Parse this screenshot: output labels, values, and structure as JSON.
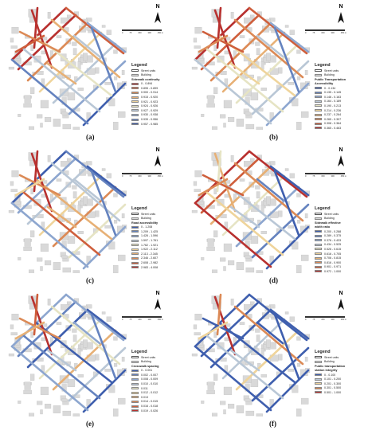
{
  "legend_common": {
    "title": "Legend",
    "street_units": "Street units",
    "building": "Building"
  },
  "north_label": "N",
  "scale_ticks": [
    "0",
    "75",
    "150",
    "300",
    "450"
  ],
  "scale_unit": "m",
  "panels": [
    {
      "id": "a",
      "caption": "(a)",
      "indicator": [
        "Sidewalk continuity"
      ],
      "classes": [
        {
          "label": "0 - 0.894",
          "color": "#b8312f"
        },
        {
          "label": "0.895 - 0.899",
          "color": "#cf5f3c"
        },
        {
          "label": "0.900 - 0.914",
          "color": "#dc8a56"
        },
        {
          "label": "0.915 - 0.920",
          "color": "#e7b075"
        },
        {
          "label": "0.921 - 0.923",
          "color": "#efd49b"
        },
        {
          "label": "0.924 - 0.926",
          "color": "#e6e4c4"
        },
        {
          "label": "0.927 - 0.929",
          "color": "#b9c7d6"
        },
        {
          "label": "0.930 - 0.938",
          "color": "#8da6cf"
        },
        {
          "label": "0.939 - 0.956",
          "color": "#6583bf"
        },
        {
          "label": "0.957 - 0.985",
          "color": "#3f5fae"
        }
      ]
    },
    {
      "id": "b",
      "caption": "(b)",
      "indicator": [
        "Public Transportation",
        "Accessibility"
      ],
      "classes": [
        {
          "label": "0 - 0.134",
          "color": "#3f5fae"
        },
        {
          "label": "0.135 - 0.145",
          "color": "#6583bf"
        },
        {
          "label": "0.146 - 0.163",
          "color": "#8da6cf"
        },
        {
          "label": "0.164 - 0.189",
          "color": "#b9c7d6"
        },
        {
          "label": "0.190 - 0.213",
          "color": "#e6e4c4"
        },
        {
          "label": "0.214 - 0.236",
          "color": "#efd49b"
        },
        {
          "label": "0.237 - 0.264",
          "color": "#e7b075"
        },
        {
          "label": "0.265 - 0.307",
          "color": "#dc8a56"
        },
        {
          "label": "0.308 - 0.364",
          "color": "#cf5f3c"
        },
        {
          "label": "0.365 - 0.463",
          "color": "#b8312f"
        }
      ]
    },
    {
      "id": "c",
      "caption": "(c)",
      "indicator": [
        "Road accessibility"
      ],
      "classes": [
        {
          "label": "0 - 1.208",
          "color": "#3f5fae"
        },
        {
          "label": "1.209 - 1.425",
          "color": "#6583bf"
        },
        {
          "label": "1.426 - 1.596",
          "color": "#8da6cf"
        },
        {
          "label": "1.597 - 1.761",
          "color": "#b9c7d6"
        },
        {
          "label": "1.762 - 1.921",
          "color": "#e6e4c4"
        },
        {
          "label": "1.922 - 2.112",
          "color": "#efd49b"
        },
        {
          "label": "2.113 - 2.345",
          "color": "#e7b075"
        },
        {
          "label": "2.346 - 2.607",
          "color": "#dc8a56"
        },
        {
          "label": "2.608 - 2.982",
          "color": "#cf5f3c"
        },
        {
          "label": "2.983 - 4.008",
          "color": "#b8312f"
        }
      ]
    },
    {
      "id": "d",
      "caption": "(d)",
      "indicator": [
        "Sidewalk effective",
        "width ratio"
      ],
      "classes": [
        {
          "label": "0.200 - 0.288",
          "color": "#3f5fae"
        },
        {
          "label": "0.289 - 0.375",
          "color": "#6583bf"
        },
        {
          "label": "0.376 - 0.433",
          "color": "#8da6cf"
        },
        {
          "label": "0.434 - 0.525",
          "color": "#b9c7d6"
        },
        {
          "label": "0.526 - 0.615",
          "color": "#e6e4c4"
        },
        {
          "label": "0.616 - 0.705",
          "color": "#efd49b"
        },
        {
          "label": "0.706 - 0.815",
          "color": "#e7b075"
        },
        {
          "label": "0.816 - 0.900",
          "color": "#dc8a56"
        },
        {
          "label": "0.901 - 0.971",
          "color": "#cf5f3c"
        },
        {
          "label": "0.972 - 1.000",
          "color": "#b8312f"
        }
      ]
    },
    {
      "id": "e",
      "caption": "(e)",
      "indicator": [
        "Crosswalk spacing"
      ],
      "classes": [
        {
          "label": "0 - 0.001",
          "color": "#3f5fae"
        },
        {
          "label": "0.002 - 0.007",
          "color": "#6583bf"
        },
        {
          "label": "0.008 - 0.009",
          "color": "#8da6cf"
        },
        {
          "label": "0.010 - 0.010",
          "color": "#b9c7d6"
        },
        {
          "label": "0.011",
          "color": "#e6e4c4"
        },
        {
          "label": "0.012 - 0.012",
          "color": "#efd49b"
        },
        {
          "label": "0.013",
          "color": "#e7b075"
        },
        {
          "label": "0.014 - 0.015",
          "color": "#dc8a56"
        },
        {
          "label": "0.016 - 0.018",
          "color": "#cf5f3c"
        },
        {
          "label": "0.019 - 0.026",
          "color": "#b8312f"
        }
      ]
    },
    {
      "id": "f",
      "caption": "(f)",
      "indicator": [
        "Public transportation",
        "station integrity"
      ],
      "classes": [
        {
          "label": "0 - 0.100",
          "color": "#3f5fae"
        },
        {
          "label": "0.101 - 0.200",
          "color": "#b9c7d6"
        },
        {
          "label": "0.201 - 0.300",
          "color": "#efd49b"
        },
        {
          "label": "0.301 - 0.500",
          "color": "#dc8a56"
        },
        {
          "label": "0.501 - 1.000",
          "color": "#b8312f"
        }
      ]
    }
  ]
}
